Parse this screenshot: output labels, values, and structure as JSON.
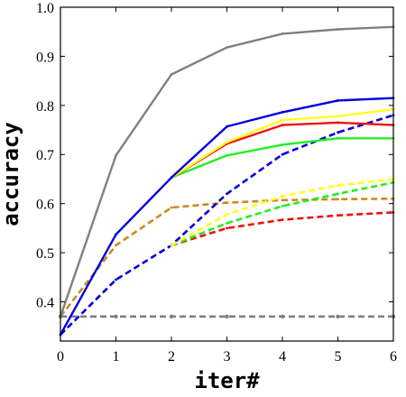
{
  "chart_data": {
    "type": "line",
    "title": "",
    "xlabel": "iter#",
    "ylabel": "accuracy",
    "xlim": [
      0,
      6
    ],
    "ylim": [
      0.32,
      1.0
    ],
    "x_ticks": [
      0,
      1,
      2,
      3,
      4,
      5,
      6
    ],
    "y_ticks": [
      0.4,
      0.5,
      0.6,
      0.7,
      0.8,
      0.9,
      1.0
    ],
    "x_tick_labels": [
      "0",
      "1",
      "2",
      "3",
      "4",
      "5",
      "6"
    ],
    "y_tick_labels": [
      "0.4",
      "0.5",
      "0.6",
      "0.7",
      "0.8",
      "0.9",
      "1.0"
    ],
    "grid": false,
    "legend": "none",
    "series": [
      {
        "x": [
          0,
          1,
          2,
          3,
          4,
          5,
          6
        ],
        "values": [
          0.37,
          0.37,
          0.37,
          0.37,
          0.37,
          0.37,
          0.37
        ],
        "color": "#808080",
        "dash": true,
        "markers": true
      },
      {
        "x": [
          0,
          1,
          2,
          3,
          4,
          5,
          6
        ],
        "values": [
          0.37,
          0.515,
          0.592,
          0.602,
          0.607,
          0.609,
          0.61
        ],
        "color": "#cc8a1e",
        "dash": true
      },
      {
        "x": [
          0,
          1,
          2,
          3,
          4,
          5,
          6
        ],
        "values": [
          0.333,
          0.445,
          0.515,
          0.62,
          0.7,
          0.745,
          0.78
        ],
        "color": "#0000dd",
        "dash": true
      },
      {
        "x": [
          2,
          3,
          4,
          5,
          6
        ],
        "values": [
          0.515,
          0.55,
          0.567,
          0.576,
          0.582
        ],
        "color": "#ee1111",
        "dash": true
      },
      {
        "x": [
          2,
          3,
          4,
          5,
          6
        ],
        "values": [
          0.515,
          0.56,
          0.595,
          0.62,
          0.643
        ],
        "color": "#22ee22",
        "dash": true
      },
      {
        "x": [
          2,
          3,
          4,
          5,
          6
        ],
        "values": [
          0.515,
          0.578,
          0.615,
          0.637,
          0.65
        ],
        "color": "#ffff22",
        "dash": true
      },
      {
        "x": [
          0,
          1,
          2,
          3,
          4,
          5,
          6
        ],
        "values": [
          0.37,
          0.698,
          0.863,
          0.918,
          0.946,
          0.955,
          0.96
        ],
        "color": "#808080",
        "dash": false
      },
      {
        "x": [
          2,
          3,
          4,
          5,
          6
        ],
        "values": [
          0.653,
          0.698,
          0.72,
          0.733,
          0.733
        ],
        "color": "#22ee22",
        "dash": false
      },
      {
        "x": [
          2,
          3,
          4,
          5,
          6
        ],
        "values": [
          0.653,
          0.722,
          0.76,
          0.765,
          0.76
        ],
        "color": "#ee1111",
        "dash": false
      },
      {
        "x": [
          2,
          3,
          4,
          5,
          6
        ],
        "values": [
          0.653,
          0.725,
          0.77,
          0.778,
          0.792
        ],
        "color": "#ffff22",
        "dash": false
      },
      {
        "x": [
          0,
          1,
          2,
          3,
          4,
          5,
          6
        ],
        "values": [
          0.333,
          0.537,
          0.653,
          0.757,
          0.786,
          0.81,
          0.815
        ],
        "color": "#0000dd",
        "dash": false
      }
    ]
  }
}
